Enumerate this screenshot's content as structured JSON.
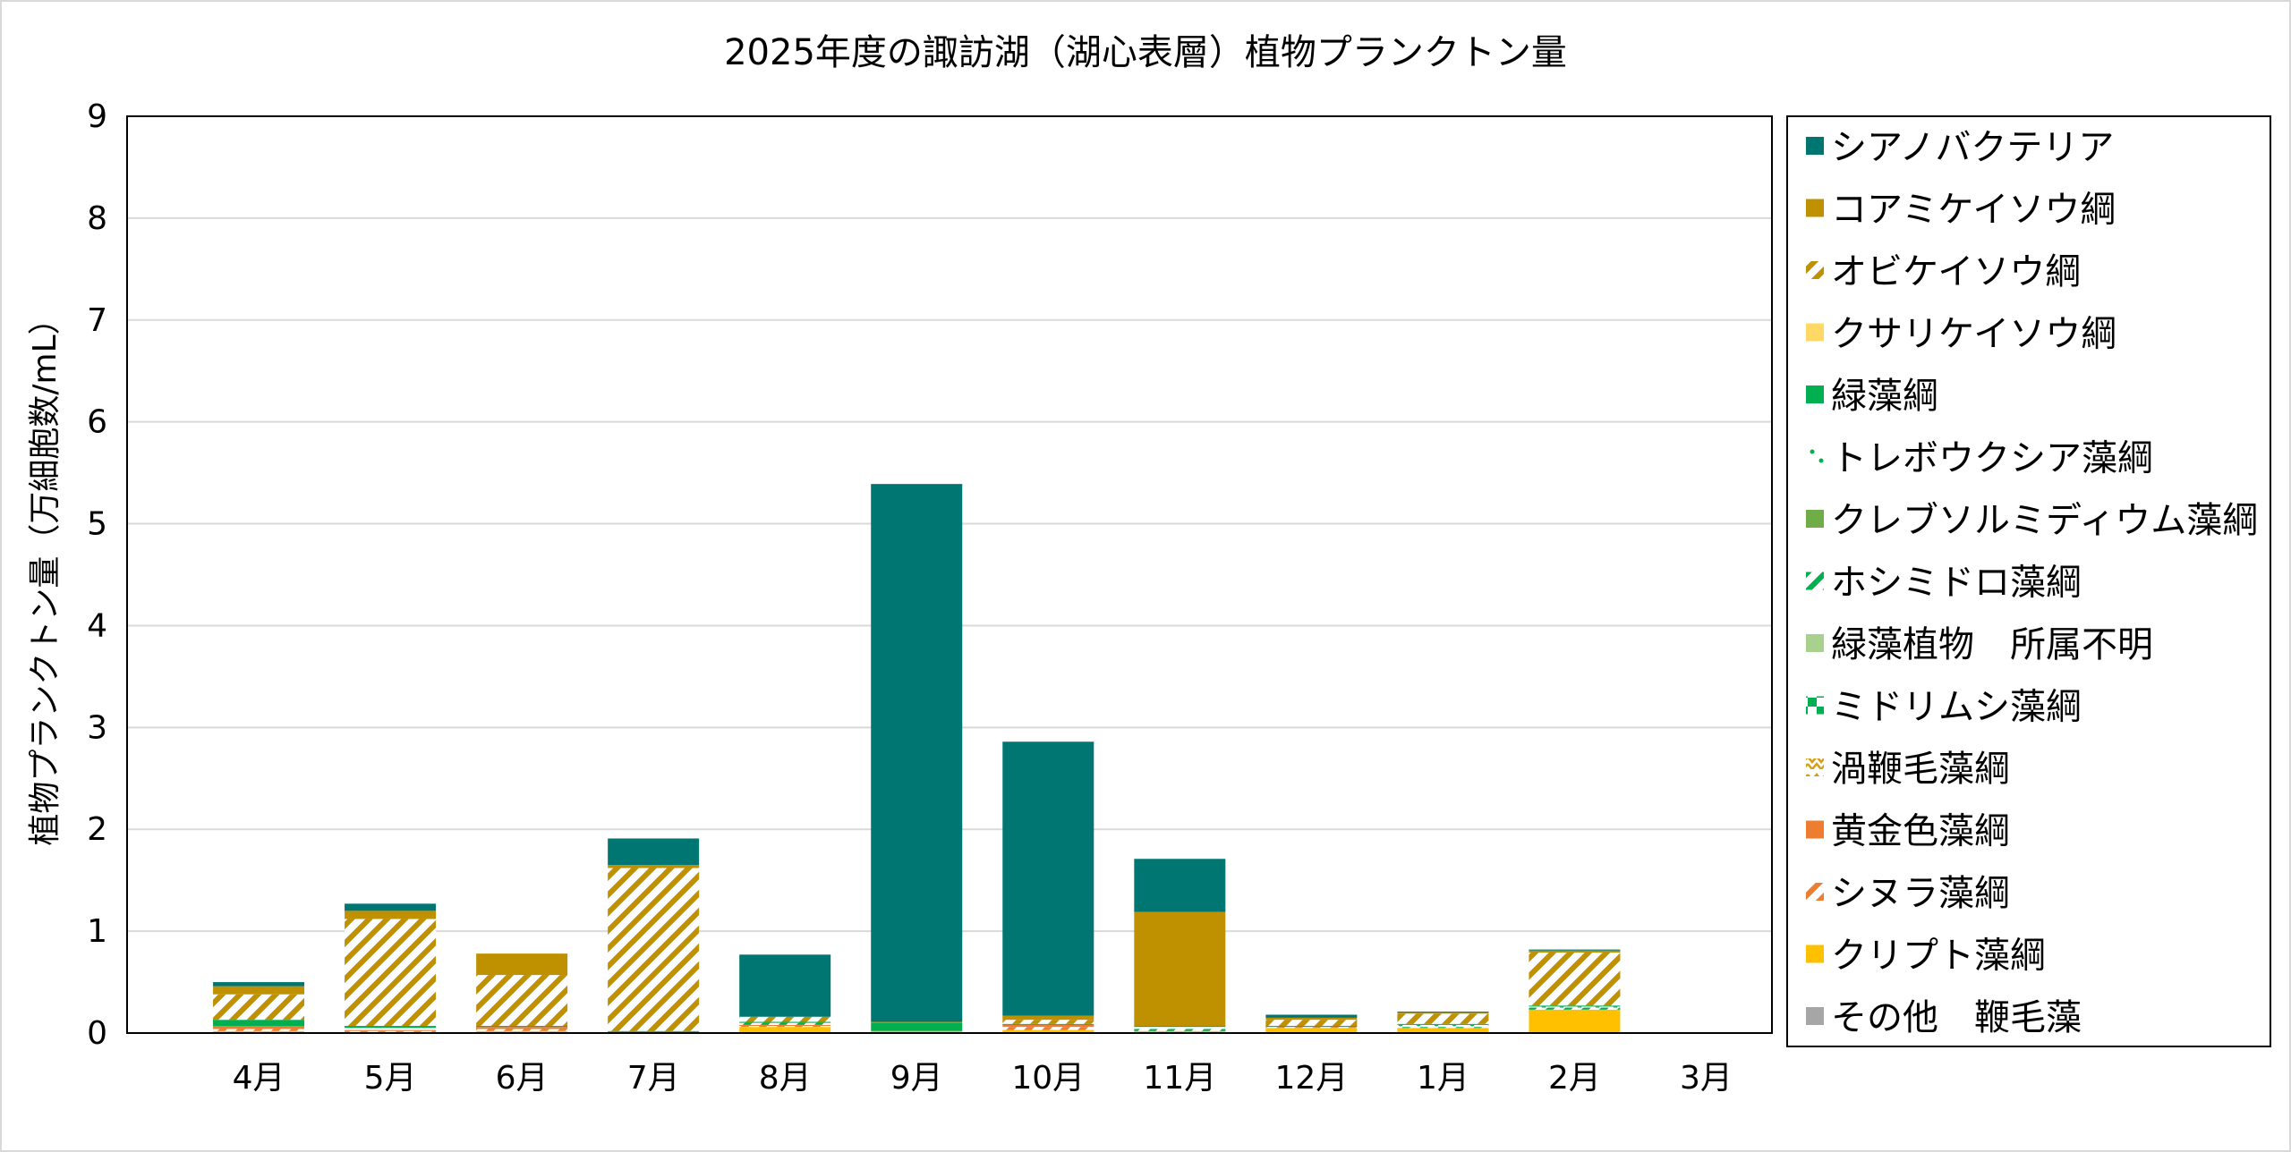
{
  "chart_data": {
    "type": "bar",
    "stacked": true,
    "title": "2025年度の諏訪湖（湖心表層）植物プランクトン量",
    "xlabel": "",
    "ylabel": "植物プランクトン量（万細胞数/mL）",
    "ylim": [
      0,
      9
    ],
    "yticks": [
      "0",
      "1",
      "2",
      "3",
      "4",
      "5",
      "6",
      "7",
      "8",
      "9"
    ],
    "grid": true,
    "legend_position": "right",
    "categories": [
      "4月",
      "5月",
      "6月",
      "7月",
      "8月",
      "9月",
      "10月",
      "11月",
      "12月",
      "1月",
      "2月",
      "3月"
    ],
    "series": [
      {
        "name": "その他　鞭毛藻",
        "color": "#A6A6A6",
        "pattern": "solid",
        "values": [
          0,
          0,
          0,
          0,
          0,
          0,
          0,
          0,
          0,
          0,
          0,
          0
        ]
      },
      {
        "name": "クリプト藻綱",
        "color": "#FFC000",
        "pattern": "solid",
        "values": [
          0.02,
          0.01,
          0.02,
          0.0,
          0.06,
          0.02,
          0.03,
          0.02,
          0.05,
          0.05,
          0.23,
          0
        ]
      },
      {
        "name": "シヌラ藻綱",
        "color": "#ED7D31",
        "pattern": "diag",
        "values": [
          0.02,
          0.01,
          0.02,
          0.0,
          0.01,
          0.0,
          0.03,
          0.0,
          0.01,
          0.0,
          0.0,
          0
        ]
      },
      {
        "name": "黄金色藻綱",
        "color": "#ED7D31",
        "pattern": "solid",
        "values": [
          0.03,
          0.01,
          0.02,
          0.0,
          0.01,
          0.0,
          0.02,
          0.0,
          0.0,
          0.0,
          0.0,
          0
        ]
      },
      {
        "name": "渦鞭毛藻綱",
        "color": "#D4A017",
        "pattern": "zigzag",
        "values": [
          0,
          0,
          0,
          0,
          0,
          0,
          0,
          0,
          0,
          0,
          0,
          0
        ]
      },
      {
        "name": "ミドリムシ藻綱",
        "color": "#00B050",
        "pattern": "checker",
        "values": [
          0,
          0,
          0,
          0,
          0,
          0,
          0,
          0,
          0,
          0,
          0,
          0
        ]
      },
      {
        "name": "緑藻植物　所属不明",
        "color": "#A9D18E",
        "pattern": "solid",
        "values": [
          0.0,
          0.0,
          0.0,
          0.0,
          0.0,
          0.0,
          0.0,
          0.0,
          0.0,
          0.0,
          0.0,
          0
        ]
      },
      {
        "name": "ホシミドロ藻綱",
        "color": "#00B050",
        "pattern": "diag",
        "values": [
          0.0,
          0.0,
          0.0,
          0.0,
          0.02,
          0.0,
          0.0,
          0.02,
          0.0,
          0.01,
          0.02,
          0
        ]
      },
      {
        "name": "クレブソルミディウム藻綱",
        "color": "#70AD47",
        "pattern": "solid",
        "values": [
          0,
          0,
          0,
          0,
          0,
          0,
          0,
          0,
          0,
          0,
          0,
          0
        ]
      },
      {
        "name": "トレボウクシア藻綱",
        "color": "#00B050",
        "pattern": "dots",
        "values": [
          0.0,
          0.02,
          0.0,
          0.01,
          0.0,
          0.0,
          0.0,
          0.02,
          0.0,
          0.02,
          0.01,
          0
        ]
      },
      {
        "name": "緑藻綱",
        "color": "#00B050",
        "pattern": "solid",
        "values": [
          0.06,
          0.02,
          0.01,
          0.01,
          0.01,
          0.08,
          0.01,
          0.01,
          0.01,
          0.01,
          0.01,
          0
        ]
      },
      {
        "name": "クサリケイソウ綱",
        "color": "#FFD966",
        "pattern": "solid",
        "values": [
          0.0,
          0.0,
          0.0,
          0.0,
          0.0,
          0.0,
          0.0,
          0.0,
          0.0,
          0.0,
          0.0,
          0
        ]
      },
      {
        "name": "オビケイソウ綱",
        "color": "#BF9000",
        "pattern": "diag",
        "values": [
          0.25,
          1.05,
          0.5,
          1.6,
          0.05,
          0.0,
          0.04,
          0.0,
          0.06,
          0.1,
          0.52,
          0
        ]
      },
      {
        "name": "コアミケイソウ綱",
        "color": "#BF9000",
        "pattern": "solid",
        "values": [
          0.08,
          0.08,
          0.21,
          0.03,
          0.0,
          0.01,
          0.04,
          1.12,
          0.02,
          0.01,
          0.02,
          0
        ]
      },
      {
        "name": "シアノバクテリア",
        "color": "#007672",
        "pattern": "solid",
        "values": [
          0.04,
          0.07,
          0.0,
          0.26,
          0.61,
          5.28,
          2.69,
          0.52,
          0.03,
          0.01,
          0.01,
          0
        ]
      }
    ],
    "legend_order": [
      "シアノバクテリア",
      "コアミケイソウ綱",
      "オビケイソウ綱",
      "クサリケイソウ綱",
      "緑藻綱",
      "トレボウクシア藻綱",
      "クレブソルミディウム藻綱",
      "ホシミドロ藻綱",
      "緑藻植物　所属不明",
      "ミドリムシ藻綱",
      "渦鞭毛藻綱",
      "黄金色藻綱",
      "シヌラ藻綱",
      "クリプト藻綱",
      "その他　鞭毛藻"
    ]
  }
}
